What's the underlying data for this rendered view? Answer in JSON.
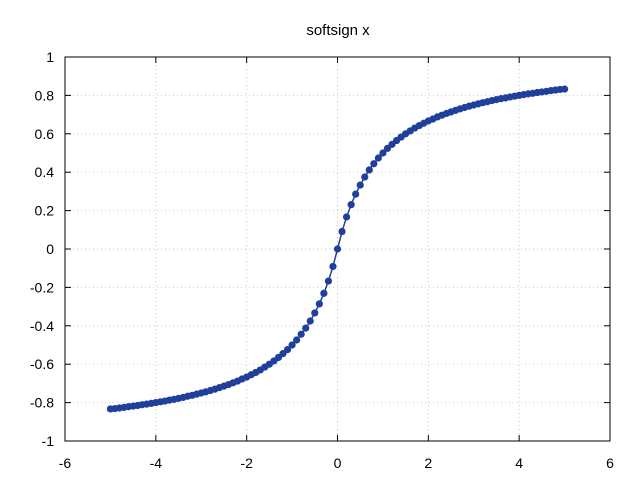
{
  "chart_data": {
    "type": "line",
    "title": "softsign x",
    "xlabel": "",
    "ylabel": "",
    "xlim": [
      -6,
      6
    ],
    "ylim": [
      -1,
      1
    ],
    "xticks": [
      -6,
      -4,
      -2,
      0,
      2,
      4,
      6
    ],
    "yticks": [
      -1,
      -0.8,
      -0.6,
      -0.4,
      -0.2,
      0,
      0.2,
      0.4,
      0.6,
      0.8,
      1
    ],
    "xtick_labels": [
      "-6",
      "-4",
      "-2",
      "0",
      "2",
      "4",
      "6"
    ],
    "ytick_labels": [
      "-1",
      "-0.8",
      "-0.6",
      "-0.4",
      "-0.2",
      "0",
      "0.2",
      "0.4",
      "0.6",
      "0.8",
      "1"
    ],
    "grid": true,
    "series": [
      {
        "color": "#1f3f9a",
        "x": [
          -5.0,
          -4.9,
          -4.8,
          -4.7,
          -4.6,
          -4.5,
          -4.4,
          -4.3,
          -4.2,
          -4.1,
          -4.0,
          -3.9,
          -3.8,
          -3.7,
          -3.6,
          -3.5,
          -3.4,
          -3.3,
          -3.2,
          -3.1,
          -3.0,
          -2.9,
          -2.8,
          -2.7,
          -2.6,
          -2.5,
          -2.4,
          -2.3,
          -2.2,
          -2.1,
          -2.0,
          -1.9,
          -1.8,
          -1.7,
          -1.6,
          -1.5,
          -1.4,
          -1.3,
          -1.2,
          -1.1,
          -1.0,
          -0.9,
          -0.8,
          -0.7,
          -0.6,
          -0.5,
          -0.4,
          -0.3,
          -0.2,
          -0.1,
          0.0,
          0.1,
          0.2,
          0.3,
          0.4,
          0.5,
          0.6,
          0.7,
          0.8,
          0.9,
          1.0,
          1.1,
          1.2,
          1.3,
          1.4,
          1.5,
          1.6,
          1.7,
          1.8,
          1.9,
          2.0,
          2.1,
          2.2,
          2.3,
          2.4,
          2.5,
          2.6,
          2.7,
          2.8,
          2.9,
          3.0,
          3.1,
          3.2,
          3.3,
          3.4,
          3.5,
          3.6,
          3.7,
          3.8,
          3.9,
          4.0,
          4.1,
          4.2,
          4.3,
          4.4,
          4.5,
          4.6,
          4.7,
          4.8,
          4.9,
          5.0
        ],
        "y": [
          -0.833,
          -0.831,
          -0.828,
          -0.825,
          -0.821,
          -0.818,
          -0.815,
          -0.811,
          -0.808,
          -0.804,
          -0.8,
          -0.796,
          -0.792,
          -0.787,
          -0.783,
          -0.778,
          -0.773,
          -0.767,
          -0.762,
          -0.756,
          -0.75,
          -0.744,
          -0.737,
          -0.73,
          -0.722,
          -0.714,
          -0.706,
          -0.697,
          -0.688,
          -0.677,
          -0.667,
          -0.655,
          -0.643,
          -0.63,
          -0.615,
          -0.6,
          -0.583,
          -0.565,
          -0.545,
          -0.524,
          -0.5,
          -0.474,
          -0.444,
          -0.412,
          -0.375,
          -0.333,
          -0.286,
          -0.231,
          -0.167,
          -0.091,
          0.0,
          0.091,
          0.167,
          0.231,
          0.286,
          0.333,
          0.375,
          0.412,
          0.444,
          0.474,
          0.5,
          0.524,
          0.545,
          0.565,
          0.583,
          0.6,
          0.615,
          0.63,
          0.643,
          0.655,
          0.667,
          0.677,
          0.688,
          0.697,
          0.706,
          0.714,
          0.722,
          0.73,
          0.737,
          0.744,
          0.75,
          0.756,
          0.762,
          0.767,
          0.773,
          0.778,
          0.783,
          0.787,
          0.792,
          0.796,
          0.8,
          0.804,
          0.808,
          0.811,
          0.815,
          0.818,
          0.821,
          0.825,
          0.828,
          0.831,
          0.833
        ]
      }
    ]
  }
}
